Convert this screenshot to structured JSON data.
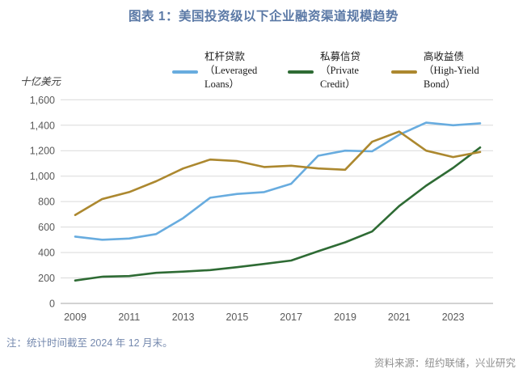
{
  "title": "图表 1：美国投资级以下企业融资渠道规模趋势",
  "note": "注：统计时间截至 2024 年 12 月末。",
  "source": "资料来源：纽约联储，兴业研究",
  "colors": {
    "title": "#5b79a6",
    "note": "#7589ae",
    "source": "#8f8f8f",
    "axis_text": "#595959",
    "gridline": "#d9d9d9",
    "axis_line": "#a6a6a6"
  },
  "chart_data": {
    "type": "line",
    "title": "图表 1：美国投资级以下企业融资渠道规模趋势",
    "ylabel": "十亿美元",
    "xlabel": "",
    "grid": "horizontal",
    "legend_position": "top",
    "ylim": [
      0,
      1600
    ],
    "y_ticks": [
      0,
      200,
      400,
      600,
      800,
      1000,
      1200,
      1400,
      1600
    ],
    "y_tick_labels": [
      "0",
      "200",
      "400",
      "600",
      "800",
      "1,000",
      "1,200",
      "1,400",
      "1,600"
    ],
    "x": [
      2009,
      2010,
      2011,
      2012,
      2013,
      2014,
      2015,
      2016,
      2017,
      2018,
      2019,
      2020,
      2021,
      2022,
      2023,
      2024
    ],
    "x_tick_labels": [
      "2009",
      "2011",
      "2013",
      "2015",
      "2017",
      "2019",
      "2021",
      "2023"
    ],
    "x_ticks": [
      2009,
      2011,
      2013,
      2015,
      2017,
      2019,
      2021,
      2023
    ],
    "series": [
      {
        "name": "杠杆贷款（Leveraged Loans）",
        "legend_lines": [
          "杠杆贷款",
          "（Leveraged",
          "Loans）"
        ],
        "color": "#68acdf",
        "values": [
          525,
          500,
          510,
          545,
          670,
          830,
          860,
          875,
          940,
          1160,
          1200,
          1195,
          1325,
          1420,
          1400,
          1415
        ]
      },
      {
        "name": "私募信贷（Private Credit）",
        "legend_lines": [
          "私募信贷",
          "（Private",
          "Credit）"
        ],
        "color": "#2e6b34",
        "values": [
          180,
          210,
          215,
          240,
          250,
          262,
          285,
          310,
          337,
          410,
          480,
          565,
          765,
          925,
          1065,
          1225
        ]
      },
      {
        "name": "高收益债（High-Yield Bond）",
        "legend_lines": [
          "高收益债",
          "（High-Yield",
          "Bond）"
        ],
        "color": "#ac882f",
        "values": [
          695,
          820,
          875,
          960,
          1060,
          1130,
          1118,
          1072,
          1082,
          1060,
          1050,
          1270,
          1350,
          1200,
          1150,
          1190
        ]
      }
    ]
  }
}
